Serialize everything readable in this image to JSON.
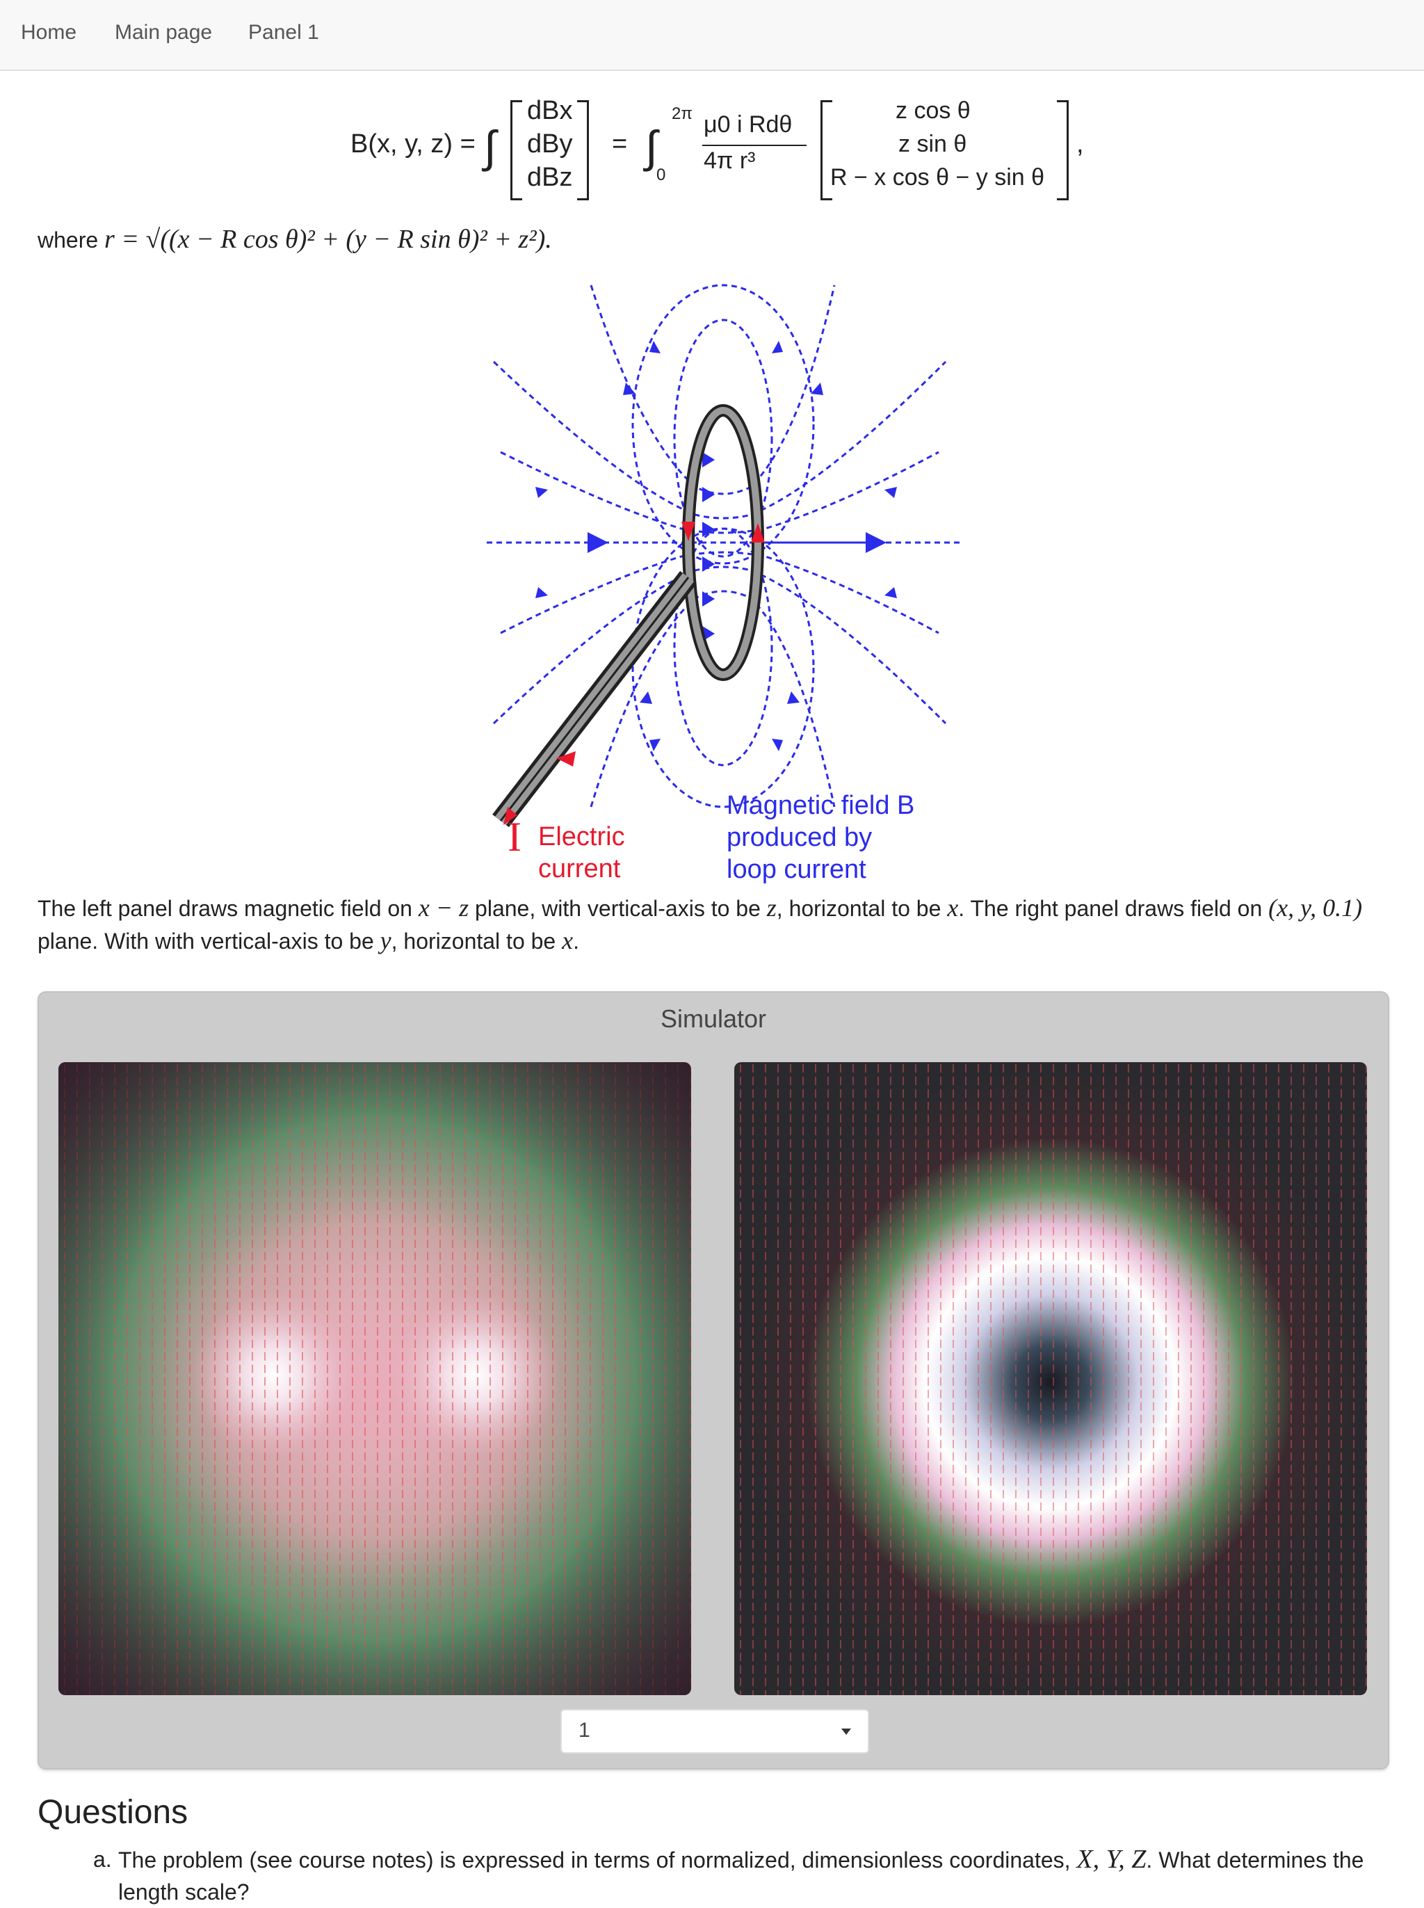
{
  "nav": {
    "items": [
      "Home",
      "Main page",
      "Panel 1"
    ]
  },
  "equation": {
    "lhs": "B(x, y, z) =",
    "vector": [
      "dBx",
      "dBy",
      "dBz"
    ],
    "integral_upper": "2π",
    "integral_lower": "0",
    "numerator": "μ0 i  Rdθ",
    "denominator": "4π   r³",
    "rhs_vector": [
      "z cos θ",
      "z sin θ",
      "R − x cos θ − y sin θ"
    ],
    "trailing": ","
  },
  "where_text": {
    "prefix": "where",
    "math": "r = √((x − R cos θ)² + (y − R sin θ)² + z²)."
  },
  "figure": {
    "current_label": [
      "Electric",
      "current"
    ],
    "current_symbol": "I",
    "field_label": [
      "Magnetic field B",
      "produced by",
      "loop current"
    ],
    "colors": {
      "field_lines": "#2b2bea",
      "current_arrows": "#e8192c",
      "wire": "#888888"
    }
  },
  "panel_description": {
    "part1": "The left panel draws magnetic field on ",
    "m1": "x − z",
    "part2": " plane, with vertical-axis to be ",
    "m2": "z",
    "part3": ", horizontal to be ",
    "m3": "x",
    "part4": ". The right panel draws field on ",
    "m4": "(x, y, 0.1)",
    "part5": " plane. With with vertical-axis to be ",
    "m5": "y",
    "part6": ", horizontal to be ",
    "m6": "x",
    "part7": "."
  },
  "simulator": {
    "title": "Simulator",
    "selected_value": "1",
    "colors": {
      "arrows": "#e05050",
      "background_dark": "#2a2a2e"
    }
  },
  "questions": {
    "heading": "Questions",
    "a_marker": "a.",
    "a_text1": "The problem (see course notes) is expressed in terms of normalized, dimensionless coordinates, ",
    "a_math": "X, Y, Z",
    "a_text2": ". What determines the length scale?"
  }
}
